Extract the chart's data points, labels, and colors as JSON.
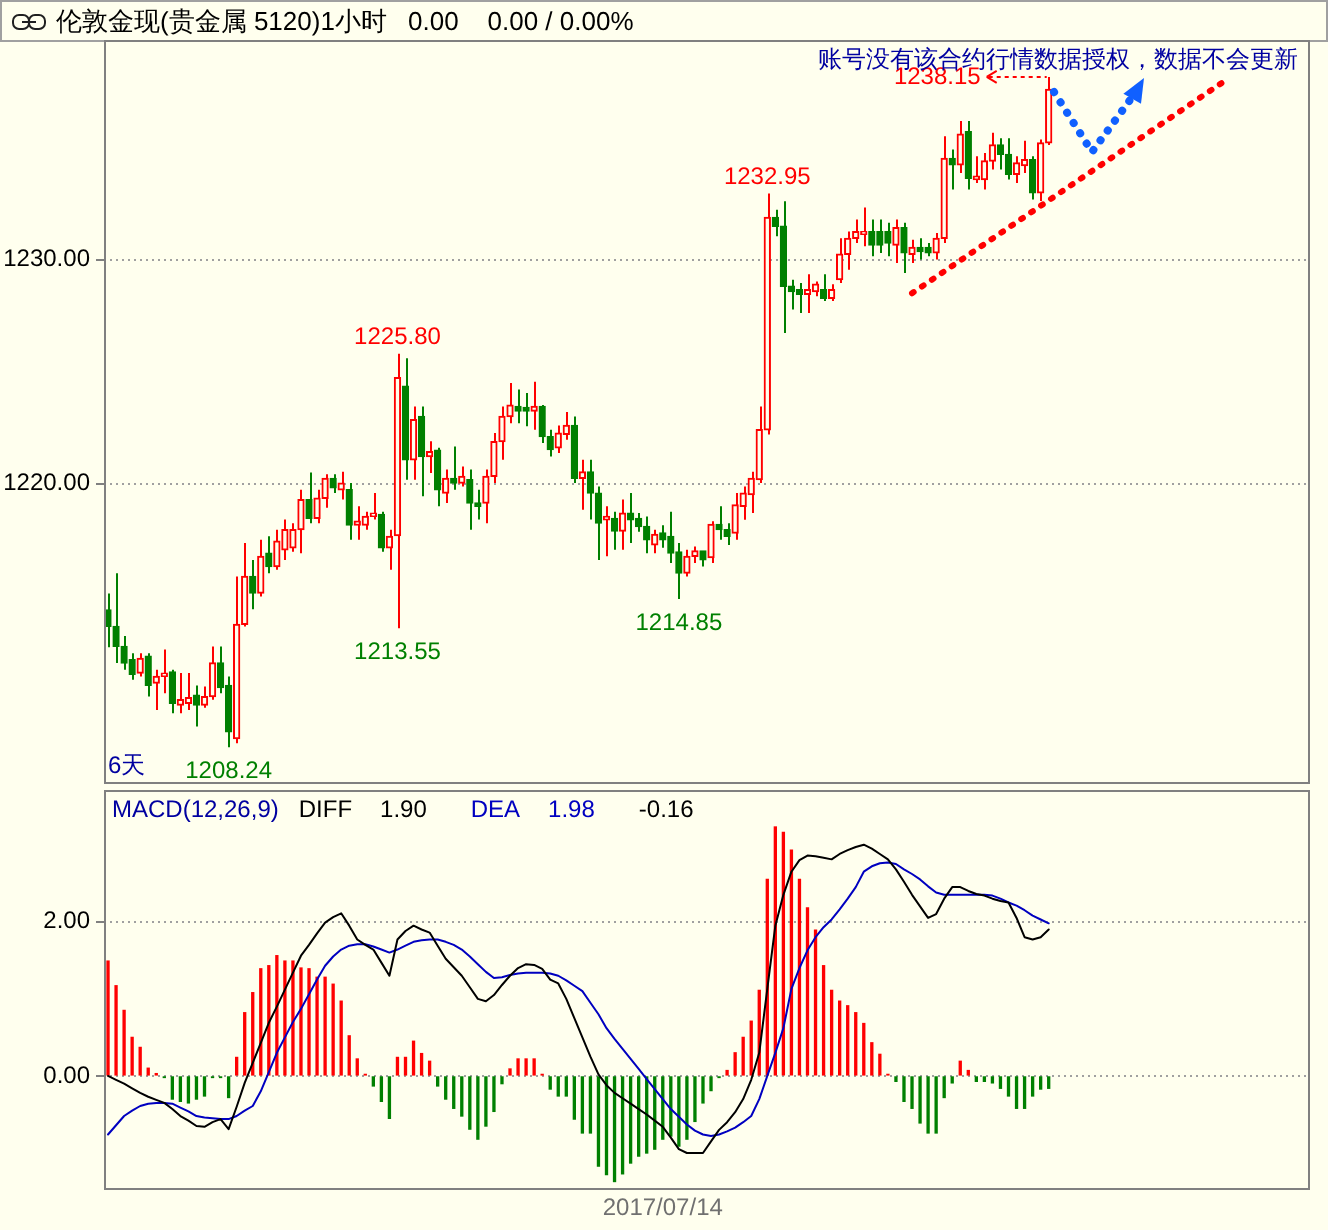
{
  "chart_data": [
    {
      "type": "candlestick",
      "title": "伦敦金现(贵金属 5120)1小时",
      "subtitle": "0.00    0.00 / 0.00%",
      "grid": "y",
      "tick_labels": "y",
      "ylim": [
        1206.6,
        1239.8
      ],
      "yticks": [
        {
          "value": 1220,
          "label": "1220.00"
        },
        {
          "value": 1230,
          "label": "1230.00"
        }
      ],
      "categories": [
        null,
        null,
        null,
        null,
        null,
        null,
        null,
        null,
        null,
        null,
        null,
        null,
        null,
        null,
        null,
        null,
        null,
        null,
        null,
        null,
        null,
        null,
        null,
        null,
        null,
        null,
        null,
        null,
        null,
        null,
        null,
        null,
        null,
        null,
        null,
        null,
        null,
        null,
        null,
        null,
        null,
        null,
        null,
        null,
        null,
        null,
        null,
        null,
        null,
        null,
        null,
        null,
        null,
        null,
        null,
        null,
        null,
        null,
        null,
        null,
        null,
        null,
        null,
        null,
        null,
        null,
        null,
        null,
        null,
        null,
        null,
        null,
        null,
        null,
        null,
        null,
        null,
        null,
        null,
        null,
        null,
        null,
        null,
        null,
        null,
        null,
        null,
        null,
        null,
        null,
        null,
        null,
        null,
        null,
        null,
        null,
        null,
        null,
        null,
        null,
        null,
        null,
        null,
        null,
        null,
        null,
        null,
        null,
        null,
        null,
        null,
        null,
        null,
        null,
        null,
        null,
        null,
        null,
        null,
        null,
        null,
        null,
        null,
        null,
        null,
        null,
        null,
        null,
        null,
        null,
        null,
        null,
        null,
        null,
        null,
        null,
        null,
        null,
        null,
        null,
        null,
        null,
        null,
        null,
        null,
        null,
        null,
        null,
        null,
        null
      ],
      "ohlc": [
        [
          1214.37,
          1215.1,
          1212.7,
          1213.63
        ],
        [
          1213.63,
          1216.0,
          1212.0,
          1212.74
        ],
        [
          1212.74,
          1213.2,
          1211.7,
          1212.0
        ],
        [
          1212.15,
          1212.44,
          1211.25,
          1211.49
        ],
        [
          1211.55,
          1212.44,
          1211.4,
          1212.2
        ],
        [
          1212.3,
          1212.44,
          1210.5,
          1211.0
        ],
        [
          1211.1,
          1211.7,
          1209.9,
          1211.4
        ],
        [
          1211.4,
          1212.6,
          1210.65,
          1211.55
        ],
        [
          1211.6,
          1211.7,
          1209.76,
          1210.2
        ],
        [
          1210.12,
          1211.55,
          1209.76,
          1210.36
        ],
        [
          1210.2,
          1211.55,
          1209.9,
          1210.45
        ],
        [
          1210.56,
          1211.0,
          1209.17,
          1210.12
        ],
        [
          1210.12,
          1210.95,
          1210.0,
          1210.5
        ],
        [
          1210.5,
          1212.74,
          1210.36,
          1212.0
        ],
        [
          1212.0,
          1212.74,
          1210.65,
          1210.9
        ],
        [
          1211.0,
          1211.4,
          1208.24,
          1208.93
        ],
        [
          1208.63,
          1215.86,
          1208.42,
          1213.72
        ],
        [
          1213.72,
          1217.35,
          1213.63,
          1215.86
        ],
        [
          1215.86,
          1216.6,
          1214.4,
          1215.12
        ],
        [
          1215.12,
          1217.5,
          1214.97,
          1216.76
        ],
        [
          1216.9,
          1217.65,
          1216.0,
          1216.3
        ],
        [
          1216.3,
          1217.95,
          1216.16,
          1217.44
        ],
        [
          1217.05,
          1218.4,
          1216.6,
          1217.95
        ],
        [
          1217.14,
          1218.24,
          1216.96,
          1217.95
        ],
        [
          1217.95,
          1219.73,
          1216.9,
          1219.29
        ],
        [
          1219.29,
          1220.5,
          1218.24,
          1218.45
        ],
        [
          1218.45,
          1219.73,
          1218.24,
          1219.35
        ],
        [
          1219.35,
          1220.42,
          1218.93,
          1220.24
        ],
        [
          1220.24,
          1220.42,
          1219.58,
          1219.82
        ],
        [
          1219.73,
          1220.53,
          1219.29,
          1220.03
        ],
        [
          1219.73,
          1220.03,
          1217.5,
          1218.15
        ],
        [
          1218.15,
          1218.99,
          1217.5,
          1218.33
        ],
        [
          1218.15,
          1218.75,
          1217.95,
          1218.54
        ],
        [
          1218.54,
          1219.58,
          1218.4,
          1218.69
        ],
        [
          1218.63,
          1218.75,
          1216.96,
          1217.14
        ],
        [
          1217.14,
          1217.95,
          1216.16,
          1217.65
        ],
        [
          1217.68,
          1225.8,
          1213.55,
          1224.73
        ],
        [
          1224.35,
          1225.6,
          1220.18,
          1221.07
        ],
        [
          1221.07,
          1223.45,
          1220.18,
          1222.86
        ],
        [
          1223.0,
          1223.45,
          1219.44,
          1221.21
        ],
        [
          1221.21,
          1221.9,
          1220.48,
          1221.43
        ],
        [
          1221.5,
          1221.6,
          1218.99,
          1219.73
        ],
        [
          1219.58,
          1220.63,
          1219.14,
          1220.24
        ],
        [
          1220.24,
          1221.66,
          1219.73,
          1220.03
        ],
        [
          1220.03,
          1220.77,
          1219.88,
          1220.33
        ],
        [
          1220.18,
          1220.63,
          1217.95,
          1219.14
        ],
        [
          1219.14,
          1219.73,
          1218.4,
          1218.99
        ],
        [
          1219.14,
          1220.63,
          1218.24,
          1220.33
        ],
        [
          1220.33,
          1222.26,
          1220.03,
          1221.88
        ],
        [
          1221.88,
          1223.45,
          1221.07,
          1223.0
        ],
        [
          1223.0,
          1224.49,
          1222.7,
          1223.51
        ],
        [
          1223.45,
          1224.2,
          1222.7,
          1223.24
        ],
        [
          1223.4,
          1224.05,
          1222.56,
          1223.24
        ],
        [
          1223.24,
          1224.55,
          1222.41,
          1223.45
        ],
        [
          1223.45,
          1223.51,
          1221.82,
          1222.1
        ],
        [
          1222.1,
          1222.41,
          1221.21,
          1221.52
        ],
        [
          1221.6,
          1222.6,
          1221.37,
          1222.26
        ],
        [
          1222.2,
          1223.2,
          1221.96,
          1222.6
        ],
        [
          1222.6,
          1223.0,
          1220.03,
          1220.24
        ],
        [
          1220.24,
          1221.07,
          1218.84,
          1220.53
        ],
        [
          1220.53,
          1221.07,
          1218.4,
          1219.58
        ],
        [
          1219.58,
          1219.88,
          1216.6,
          1218.24
        ],
        [
          1218.39,
          1218.99,
          1216.76,
          1218.54
        ],
        [
          1218.45,
          1218.75,
          1217.05,
          1217.89
        ],
        [
          1217.89,
          1219.29,
          1217.05,
          1218.69
        ],
        [
          1218.69,
          1219.58,
          1217.35,
          1218.39
        ],
        [
          1218.45,
          1218.69,
          1217.86,
          1218.09
        ],
        [
          1218.09,
          1218.54,
          1216.9,
          1217.5
        ],
        [
          1217.27,
          1217.95,
          1216.9,
          1217.74
        ],
        [
          1217.8,
          1218.15,
          1217.14,
          1217.5
        ],
        [
          1217.65,
          1218.75,
          1216.46,
          1216.9
        ],
        [
          1216.96,
          1217.35,
          1214.85,
          1216.01
        ],
        [
          1216.01,
          1217.05,
          1215.86,
          1216.76
        ],
        [
          1216.76,
          1217.2,
          1216.46,
          1217.0
        ],
        [
          1217.0,
          1217.0,
          1216.31,
          1216.6
        ],
        [
          1216.7,
          1218.33,
          1216.46,
          1218.18
        ],
        [
          1218.18,
          1218.99,
          1217.5,
          1217.95
        ],
        [
          1217.95,
          1218.24,
          1217.27,
          1217.65
        ],
        [
          1217.8,
          1219.58,
          1217.5,
          1219.05
        ],
        [
          1218.99,
          1219.88,
          1218.39,
          1219.58
        ],
        [
          1219.52,
          1220.53,
          1218.69,
          1220.24
        ],
        [
          1220.18,
          1223.45,
          1220.03,
          1222.41
        ],
        [
          1222.4,
          1232.95,
          1222.2,
          1231.88
        ],
        [
          1231.88,
          1232.23,
          1231.04,
          1231.49
        ],
        [
          1231.49,
          1232.6,
          1226.73,
          1228.81
        ],
        [
          1228.81,
          1229.1,
          1227.77,
          1228.57
        ],
        [
          1228.66,
          1228.96,
          1227.62,
          1228.45
        ],
        [
          1228.45,
          1229.35,
          1227.62,
          1228.66
        ],
        [
          1228.57,
          1229.02,
          1228.36,
          1228.9
        ],
        [
          1228.66,
          1229.35,
          1228.15,
          1228.27
        ],
        [
          1228.27,
          1228.9,
          1228.15,
          1228.66
        ],
        [
          1229.11,
          1230.95,
          1228.96,
          1230.24
        ],
        [
          1230.24,
          1231.25,
          1229.55,
          1230.95
        ],
        [
          1230.95,
          1231.79,
          1230.74,
          1231.25
        ],
        [
          1231.13,
          1232.32,
          1230.6,
          1231.25
        ],
        [
          1231.25,
          1231.79,
          1230.15,
          1230.65
        ],
        [
          1231.25,
          1231.79,
          1230.3,
          1230.65
        ],
        [
          1231.25,
          1231.64,
          1230.15,
          1230.74
        ],
        [
          1230.65,
          1231.79,
          1229.85,
          1231.43
        ],
        [
          1231.43,
          1231.64,
          1229.4,
          1230.3
        ],
        [
          1230.24,
          1230.89,
          1229.85,
          1230.54
        ],
        [
          1230.54,
          1230.95,
          1230.0,
          1230.36
        ],
        [
          1230.54,
          1230.74,
          1230.15,
          1230.3
        ],
        [
          1230.3,
          1231.19,
          1230.0,
          1230.95
        ],
        [
          1230.95,
          1235.5,
          1230.74,
          1234.52
        ],
        [
          1234.52,
          1234.91,
          1233.13,
          1234.23
        ],
        [
          1234.23,
          1236.19,
          1233.87,
          1235.6
        ],
        [
          1235.71,
          1236.19,
          1233.13,
          1233.63
        ],
        [
          1233.57,
          1234.61,
          1233.42,
          1233.72
        ],
        [
          1233.57,
          1234.76,
          1233.13,
          1234.4
        ],
        [
          1234.4,
          1235.66,
          1234.02,
          1235.12
        ],
        [
          1235.12,
          1235.42,
          1234.02,
          1234.7
        ],
        [
          1234.7,
          1235.42,
          1233.57,
          1233.81
        ],
        [
          1233.81,
          1234.61,
          1233.42,
          1234.32
        ],
        [
          1234.2,
          1235.3,
          1233.87,
          1234.46
        ],
        [
          1234.46,
          1234.61,
          1232.68,
          1232.98
        ],
        [
          1232.98,
          1235.36,
          1232.62,
          1235.21
        ],
        [
          1235.21,
          1238.15,
          1235.12,
          1237.59
        ],
        null,
        null,
        null,
        null,
        null,
        null,
        null,
        null,
        null,
        null,
        null,
        null,
        null,
        null,
        null,
        null,
        null,
        null,
        null,
        null,
        null,
        null,
        null,
        null,
        null,
        null,
        null,
        null,
        null,
        null,
        null,
        null
      ],
      "colors": [
        "#008000",
        "#008000",
        "#008000",
        "#008000",
        "#ff0000",
        "#008000",
        "#ff0000",
        "#ff0000",
        "#008000",
        "#ff0000",
        "#ff0000",
        "#008000",
        "#ff0000",
        "#ff0000",
        "#008000",
        "#008000",
        "#ff0000",
        "#ff0000",
        "#008000",
        "#ff0000",
        "#008000",
        "#ff0000",
        "#ff0000",
        "#ff0000",
        "#ff0000",
        "#008000",
        "#ff0000",
        "#ff0000",
        "#008000",
        "#ff0000",
        "#008000",
        "#ff0000",
        "#ff0000",
        "#ff0000",
        "#008000",
        "#ff0000",
        "#ff0000",
        "#008000",
        "#ff0000",
        "#008000",
        "#ff0000",
        "#008000",
        "#ff0000",
        "#008000",
        "#ff0000",
        "#008000",
        "#008000",
        "#ff0000",
        "#ff0000",
        "#ff0000",
        "#ff0000",
        "#008000",
        "#008000",
        "#ff0000",
        "#008000",
        "#008000",
        "#ff0000",
        "#ff0000",
        "#008000",
        "#ff0000",
        "#008000",
        "#008000",
        "#ff0000",
        "#008000",
        "#ff0000",
        "#008000",
        "#008000",
        "#008000",
        "#ff0000",
        "#008000",
        "#008000",
        "#008000",
        "#ff0000",
        "#ff0000",
        "#008000",
        "#ff0000",
        "#008000",
        "#008000",
        "#ff0000",
        "#ff0000",
        "#ff0000",
        "#ff0000",
        "#ff0000",
        "#008000",
        "#008000",
        "#008000",
        "#008000",
        "#ff0000",
        "#ff0000",
        "#008000",
        "#ff0000",
        "#ff0000",
        "#ff0000",
        "#ff0000",
        "#ff0000",
        "#008000",
        "#008000",
        "#008000",
        "#ff0000",
        "#008000",
        "#ff0000",
        "#008000",
        "#008000",
        "#ff0000",
        "#ff0000",
        "#008000",
        "#ff0000",
        "#008000",
        "#ff0000",
        "#ff0000",
        "#ff0000",
        "#008000",
        "#008000",
        "#ff0000",
        "#ff0000",
        "#008000",
        "#ff0000",
        "#ff0000",
        null,
        null,
        null,
        null,
        null,
        null,
        null,
        null,
        null,
        null,
        null,
        null,
        null,
        null,
        null,
        null,
        null,
        null,
        null,
        null,
        null,
        null,
        null,
        null,
        null,
        null,
        null,
        null,
        null,
        null,
        null,
        null
      ],
      "series": [
        {
          "type": "line",
          "color": "#ff0000",
          "line_style": "dotted",
          "marker": "none",
          "values": [
            null,
            null,
            null,
            null,
            null,
            null,
            null,
            null,
            null,
            null,
            null,
            null,
            null,
            null,
            null,
            null,
            null,
            null,
            null,
            null,
            null,
            null,
            null,
            null,
            null,
            null,
            null,
            null,
            null,
            null,
            null,
            null,
            null,
            null,
            null,
            null,
            null,
            null,
            null,
            null,
            null,
            null,
            null,
            null,
            null,
            null,
            null,
            null,
            null,
            null,
            null,
            null,
            null,
            null,
            null,
            null,
            null,
            null,
            null,
            null,
            null,
            null,
            null,
            null,
            null,
            null,
            null,
            null,
            null,
            null,
            null,
            null,
            null,
            null,
            null,
            null,
            null,
            null,
            null,
            null,
            null,
            null,
            null,
            null,
            null,
            null,
            null,
            null,
            null,
            null,
            null,
            null,
            null,
            null,
            null,
            null,
            null,
            null,
            null,
            null,
            1228.5,
            null,
            null,
            null,
            null,
            null,
            null,
            null,
            null,
            null,
            null,
            null,
            null,
            null,
            null,
            null,
            null,
            null,
            null,
            null,
            null,
            null,
            null,
            null,
            null,
            null,
            null,
            null,
            null,
            null,
            null,
            null,
            null,
            null,
            null,
            null,
            null,
            null,
            null,
            1238.0,
            null,
            null,
            null,
            null,
            null,
            null,
            null,
            null,
            null,
            null
          ]
        }
      ],
      "annotations": [
        "6天",
        {
          "text": "1225.80",
          "y": 1225.8
        },
        {
          "text": "1213.55",
          "y": 1213.55
        },
        {
          "text": "1208.24",
          "y": 1208.24
        },
        {
          "text": "1214.85",
          "y": 1214.85
        },
        {
          "text": "1232.95",
          "y": 1232.95
        },
        "1238.15",
        "账号没有该合约行情数据授权，数据不会更新"
      ]
    },
    {
      "type": "bar",
      "title": "MACD(12,26,9)",
      "legend": "top left",
      "grid": "y",
      "marker": "none",
      "ylim": [
        -1.48,
        3.71
      ],
      "yticks": [
        {
          "value": 0,
          "label": "0.00"
        },
        {
          "value": 2,
          "label": "2.00"
        }
      ],
      "categories": [
        null,
        null,
        null,
        null,
        null,
        null,
        null,
        null,
        null,
        null,
        null,
        null,
        null,
        null,
        null,
        null,
        null,
        null,
        null,
        null,
        null,
        null,
        null,
        null,
        null,
        null,
        null,
        null,
        null,
        null,
        null,
        null,
        null,
        null,
        null,
        null,
        null,
        null,
        null,
        null,
        null,
        null,
        null,
        null,
        null,
        null,
        null,
        null,
        null,
        null,
        null,
        null,
        null,
        null,
        null,
        null,
        null,
        null,
        null,
        null,
        null,
        null,
        null,
        null,
        null,
        null,
        null,
        null,
        null,
        "2017/07/14",
        null,
        null,
        null,
        null,
        null,
        null,
        null,
        null,
        null,
        null,
        null,
        null,
        null,
        null,
        null,
        null,
        null,
        null,
        null,
        null,
        null,
        null,
        null,
        null,
        null,
        null,
        null,
        null,
        null,
        null,
        null,
        null,
        null,
        null,
        null,
        null,
        null,
        null,
        null,
        null,
        null,
        null,
        null,
        null,
        null,
        null,
        null,
        null,
        null,
        null,
        null,
        null,
        null,
        null,
        null,
        null,
        null,
        null,
        null,
        null,
        null,
        null,
        null,
        null,
        null,
        null,
        null,
        null,
        null,
        null,
        null,
        null,
        null,
        null,
        null,
        null,
        null,
        null,
        null,
        null
      ],
      "series": [
        {
          "type": "bar",
          "values": [
            1.49,
            1.17,
            0.85,
            0.5,
            0.37,
            0.1,
            0.03,
            -0.02,
            -0.3,
            -0.33,
            -0.35,
            -0.3,
            -0.26,
            -0.02,
            -0.02,
            -0.28,
            0.24,
            0.82,
            1.08,
            1.39,
            1.43,
            1.56,
            1.49,
            1.49,
            1.4,
            1.39,
            1.28,
            1.28,
            1.19,
            0.97,
            0.52,
            0.22,
            0.02,
            -0.13,
            -0.33,
            -0.55,
            0.24,
            0.24,
            0.45,
            0.29,
            0.19,
            -0.13,
            -0.3,
            -0.42,
            -0.52,
            -0.69,
            -0.82,
            -0.65,
            -0.46,
            -0.1,
            0.09,
            0.22,
            0.22,
            0.22,
            0.02,
            -0.17,
            -0.26,
            -0.26,
            -0.56,
            -0.74,
            -0.74,
            -1.17,
            -1.28,
            -1.37,
            -1.27,
            -1.13,
            -1.04,
            -1.0,
            -0.95,
            -0.82,
            -0.78,
            -0.91,
            -0.82,
            -0.59,
            -0.35,
            -0.19,
            -0.02,
            0.07,
            0.3,
            0.5,
            0.71,
            1.11,
            2.55,
            3.23,
            3.16,
            2.93,
            2.55,
            2.18,
            1.89,
            1.43,
            1.11,
            0.97,
            0.91,
            0.82,
            0.68,
            0.43,
            0.28,
            0.02,
            -0.07,
            -0.33,
            -0.42,
            -0.61,
            -0.74,
            -0.74,
            -0.28,
            -0.09,
            0.19,
            0.07,
            -0.07,
            -0.07,
            -0.09,
            -0.16,
            -0.26,
            -0.42,
            -0.42,
            -0.26,
            -0.17,
            -0.16,
            null,
            null,
            null,
            null,
            null,
            null,
            null,
            null,
            null,
            null,
            null,
            null,
            null,
            null,
            null,
            null,
            null,
            null,
            null,
            null,
            null,
            null,
            null,
            null,
            null,
            null,
            null,
            null,
            null,
            null,
            null,
            null
          ],
          "colors": [
            "#ff0000",
            "#ff0000",
            "#ff0000",
            "#ff0000",
            "#ff0000",
            "#ff0000",
            "#ff0000",
            "#008000",
            "#008000",
            "#008000",
            "#008000",
            "#008000",
            "#008000",
            "#008000",
            "#008000",
            "#008000",
            "#ff0000",
            "#ff0000",
            "#ff0000",
            "#ff0000",
            "#ff0000",
            "#ff0000",
            "#ff0000",
            "#ff0000",
            "#ff0000",
            "#ff0000",
            "#ff0000",
            "#ff0000",
            "#ff0000",
            "#ff0000",
            "#ff0000",
            "#ff0000",
            "#ff0000",
            "#008000",
            "#008000",
            "#008000",
            "#ff0000",
            "#ff0000",
            "#ff0000",
            "#ff0000",
            "#ff0000",
            "#008000",
            "#008000",
            "#008000",
            "#008000",
            "#008000",
            "#008000",
            "#008000",
            "#008000",
            "#008000",
            "#ff0000",
            "#ff0000",
            "#ff0000",
            "#ff0000",
            "#ff0000",
            "#008000",
            "#008000",
            "#008000",
            "#008000",
            "#008000",
            "#008000",
            "#008000",
            "#008000",
            "#008000",
            "#008000",
            "#008000",
            "#008000",
            "#008000",
            "#008000",
            "#008000",
            "#008000",
            "#008000",
            "#008000",
            "#008000",
            "#008000",
            "#008000",
            "#008000",
            "#ff0000",
            "#ff0000",
            "#ff0000",
            "#ff0000",
            "#ff0000",
            "#ff0000",
            "#ff0000",
            "#ff0000",
            "#ff0000",
            "#ff0000",
            "#ff0000",
            "#ff0000",
            "#ff0000",
            "#ff0000",
            "#ff0000",
            "#ff0000",
            "#ff0000",
            "#ff0000",
            "#ff0000",
            "#ff0000",
            "#ff0000",
            "#008000",
            "#008000",
            "#008000",
            "#008000",
            "#008000",
            "#008000",
            "#008000",
            "#008000",
            "#ff0000",
            "#ff0000",
            "#008000",
            "#008000",
            "#008000",
            "#008000",
            "#008000",
            "#008000",
            "#008000",
            "#008000",
            "#008000",
            "#008000",
            null,
            null,
            null,
            null,
            null,
            null,
            null,
            null,
            null,
            null,
            null,
            null,
            null,
            null,
            null,
            null,
            null,
            null,
            null,
            null,
            null,
            null,
            null,
            null,
            null,
            null,
            null,
            null,
            null,
            null,
            null,
            null
          ]
        },
        {
          "type": "line",
          "name": "DIFF",
          "color": "#000000",
          "values": [
            0,
            -0.05,
            -0.1,
            -0.16,
            -0.22,
            -0.27,
            -0.31,
            -0.35,
            -0.43,
            -0.52,
            -0.58,
            -0.65,
            -0.66,
            -0.6,
            -0.56,
            -0.69,
            -0.4,
            -0.09,
            0.17,
            0.43,
            0.69,
            0.9,
            1.12,
            1.34,
            1.56,
            1.7,
            1.85,
            1.99,
            2.06,
            2.11,
            1.95,
            1.77,
            1.7,
            1.64,
            1.47,
            1.3,
            1.77,
            1.88,
            1.95,
            1.9,
            1.86,
            1.69,
            1.52,
            1.41,
            1.3,
            1.15,
            1.0,
            0.97,
            1.05,
            1.18,
            1.3,
            1.4,
            1.45,
            1.44,
            1.39,
            1.25,
            1.2,
            1.0,
            0.75,
            0.5,
            0.25,
            0.02,
            -0.12,
            -0.22,
            -0.29,
            -0.36,
            -0.43,
            -0.5,
            -0.58,
            -0.66,
            -0.8,
            -0.95,
            -1.0,
            -1.0,
            -1.0,
            -0.85,
            -0.7,
            -0.6,
            -0.47,
            -0.3,
            -0.05,
            0.3,
            1.13,
            1.95,
            2.35,
            2.65,
            2.8,
            2.86,
            2.85,
            2.83,
            2.81,
            2.88,
            2.93,
            2.97,
            3.0,
            2.95,
            2.88,
            2.81,
            2.68,
            2.52,
            2.35,
            2.2,
            2.05,
            2.1,
            2.3,
            2.45,
            2.45,
            2.4,
            2.36,
            2.34,
            2.3,
            2.27,
            2.25,
            2.05,
            1.8,
            1.77,
            1.8,
            1.9,
            null,
            null,
            null,
            null,
            null,
            null,
            null,
            null,
            null,
            null,
            null,
            null,
            null,
            null,
            null,
            null,
            null,
            null,
            null,
            null,
            null,
            null,
            null,
            null,
            null,
            null,
            null,
            null,
            null,
            null,
            null,
            null
          ]
        },
        {
          "type": "line",
          "name": "DEA",
          "color": "#0000c0",
          "values": [
            -0.76,
            -0.64,
            -0.52,
            -0.45,
            -0.39,
            -0.36,
            -0.35,
            -0.35,
            -0.36,
            -0.41,
            -0.46,
            -0.52,
            -0.54,
            -0.55,
            -0.56,
            -0.56,
            -0.52,
            -0.45,
            -0.39,
            -0.2,
            0.05,
            0.3,
            0.5,
            0.7,
            0.87,
            1.06,
            1.25,
            1.43,
            1.55,
            1.64,
            1.69,
            1.71,
            1.71,
            1.68,
            1.64,
            1.6,
            1.64,
            1.69,
            1.74,
            1.76,
            1.77,
            1.77,
            1.74,
            1.7,
            1.64,
            1.55,
            1.45,
            1.35,
            1.27,
            1.28,
            1.31,
            1.33,
            1.34,
            1.34,
            1.34,
            1.33,
            1.3,
            1.24,
            1.17,
            1.1,
            0.95,
            0.8,
            0.62,
            0.48,
            0.35,
            0.22,
            0.09,
            -0.04,
            -0.17,
            -0.3,
            -0.43,
            -0.53,
            -0.63,
            -0.71,
            -0.76,
            -0.78,
            -0.76,
            -0.72,
            -0.67,
            -0.6,
            -0.52,
            -0.3,
            0.0,
            0.3,
            0.62,
            1.13,
            1.4,
            1.63,
            1.8,
            1.93,
            2.03,
            2.16,
            2.3,
            2.45,
            2.65,
            2.72,
            2.76,
            2.77,
            2.75,
            2.68,
            2.62,
            2.55,
            2.46,
            2.38,
            2.35,
            2.35,
            2.35,
            2.35,
            2.35,
            2.35,
            2.34,
            2.3,
            2.25,
            2.21,
            2.15,
            2.08,
            2.03,
            1.98,
            null,
            null,
            null,
            null,
            null,
            null,
            null,
            null,
            null,
            null,
            null,
            null,
            null,
            null,
            null,
            null,
            null,
            null,
            null,
            null,
            null,
            null,
            null,
            null,
            null,
            null,
            null,
            null,
            null,
            null,
            null,
            null
          ]
        }
      ],
      "annotations": [
        "1.90",
        "1.98",
        "-0.16"
      ]
    }
  ]
}
